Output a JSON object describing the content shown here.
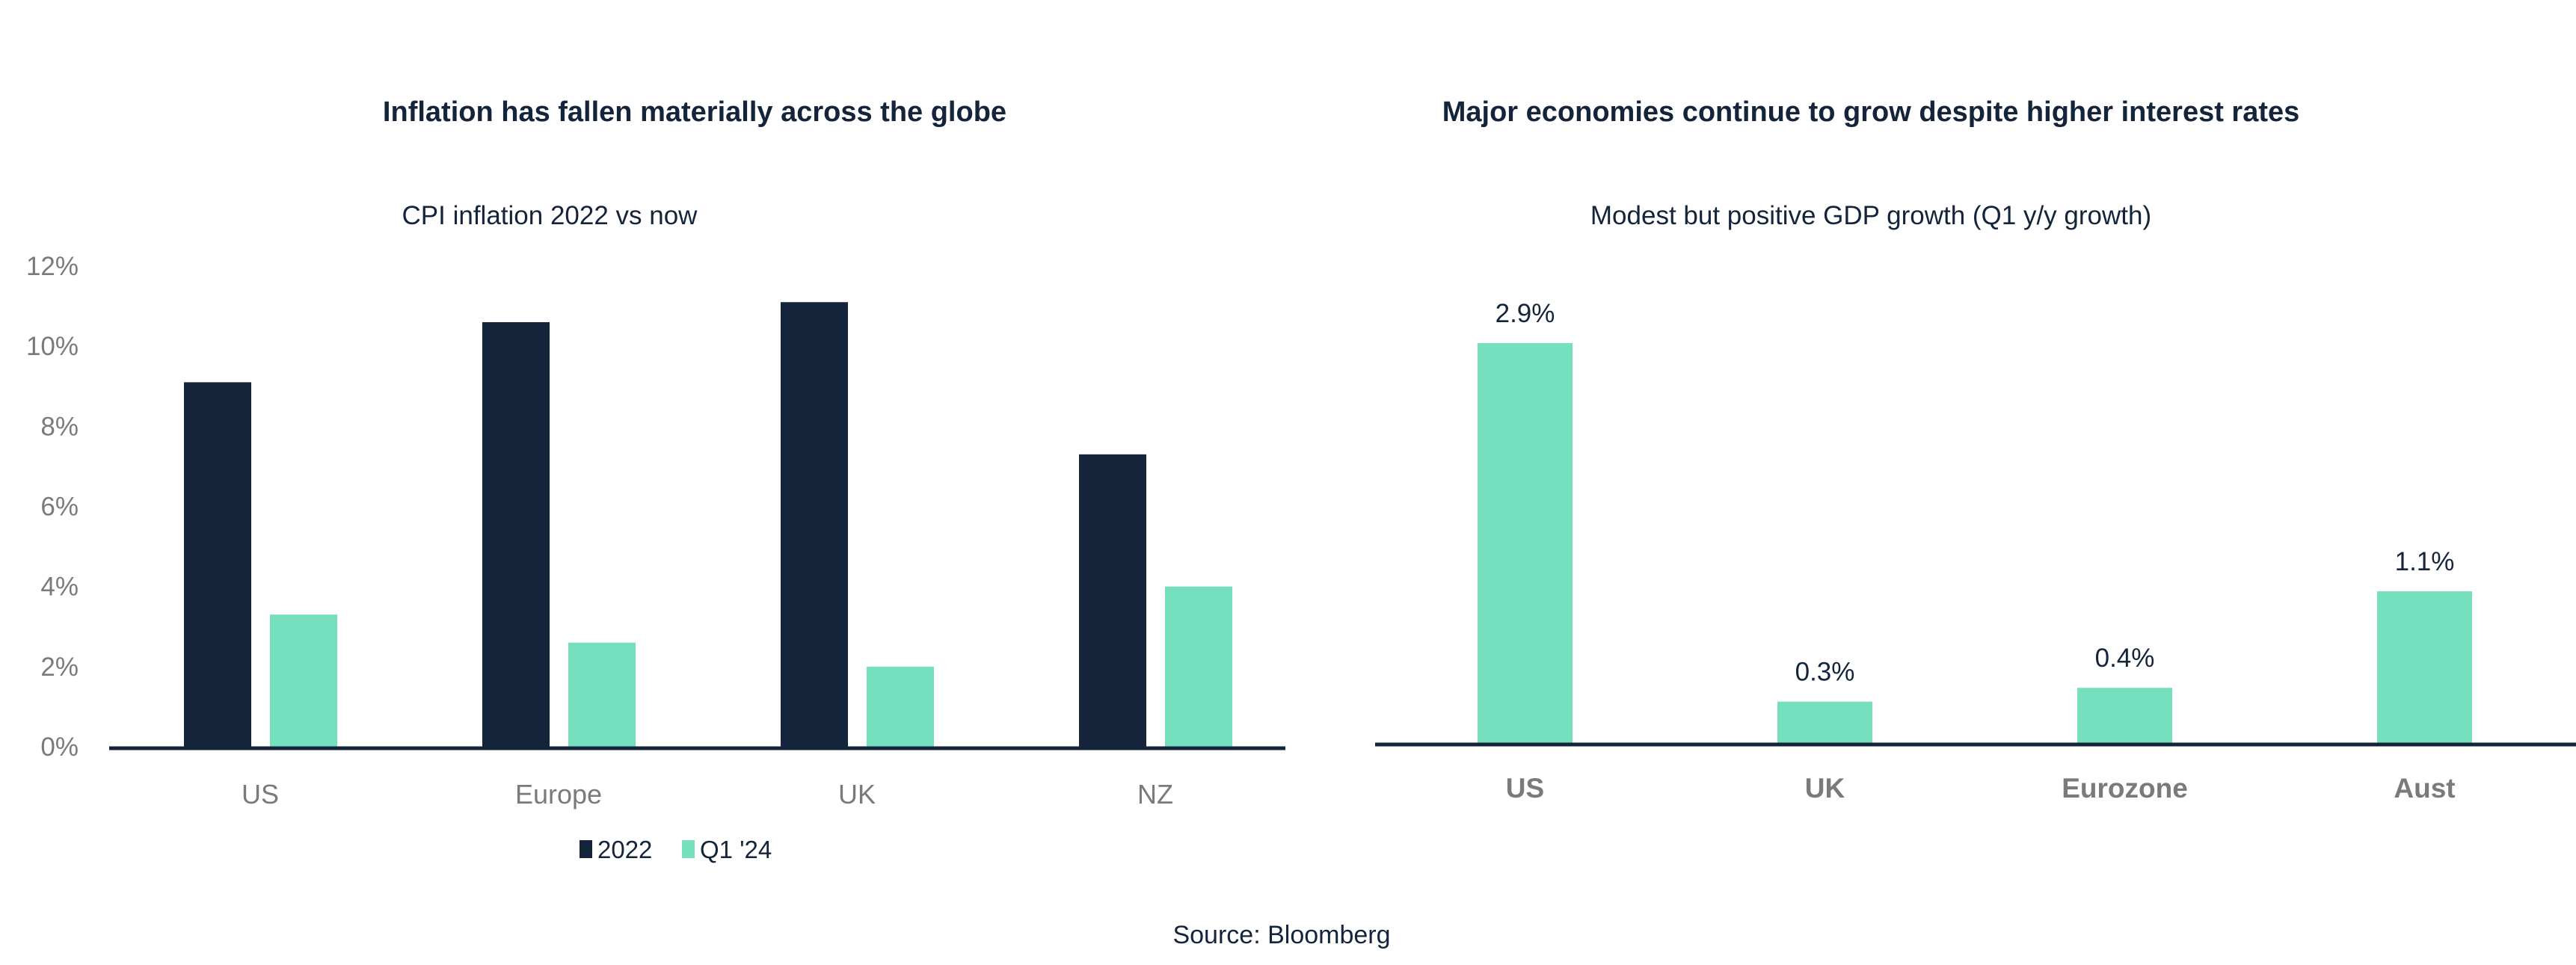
{
  "colors": {
    "navy": "#14243a",
    "mint": "#76dfbd",
    "axis_text": "#7a7a7a"
  },
  "source": "Source: Bloomberg",
  "chart_data": [
    {
      "type": "bar",
      "title": "Inflation has fallen materially across the globe",
      "subtitle": "CPI inflation 2022 vs now",
      "categories": [
        "US",
        "Europe",
        "UK",
        "NZ"
      ],
      "series": [
        {
          "name": "2022",
          "color": "#14243a",
          "values": [
            9.1,
            10.6,
            11.1,
            7.3
          ]
        },
        {
          "name": "Q1 '24",
          "color": "#76dfbd",
          "values": [
            3.3,
            2.6,
            2.0,
            4.0
          ]
        }
      ],
      "ylim": [
        0,
        12
      ],
      "yticks": [
        "0%",
        "2%",
        "4%",
        "6%",
        "8%",
        "10%",
        "12%"
      ],
      "grid": false,
      "legend": "bottom-center"
    },
    {
      "type": "bar",
      "title": "Major economies continue to grow despite higher interest rates",
      "subtitle": "Modest but positive GDP growth (Q1 y/y growth)",
      "categories": [
        "US",
        "UK",
        "Eurozone",
        "Aust"
      ],
      "values": [
        2.9,
        0.3,
        0.4,
        1.1
      ],
      "data_labels": [
        "2.9%",
        "0.3%",
        "0.4%",
        "1.1%"
      ],
      "color": "#76dfbd",
      "ylim": [
        0,
        2.9
      ],
      "grid": false,
      "legend": "none"
    }
  ]
}
